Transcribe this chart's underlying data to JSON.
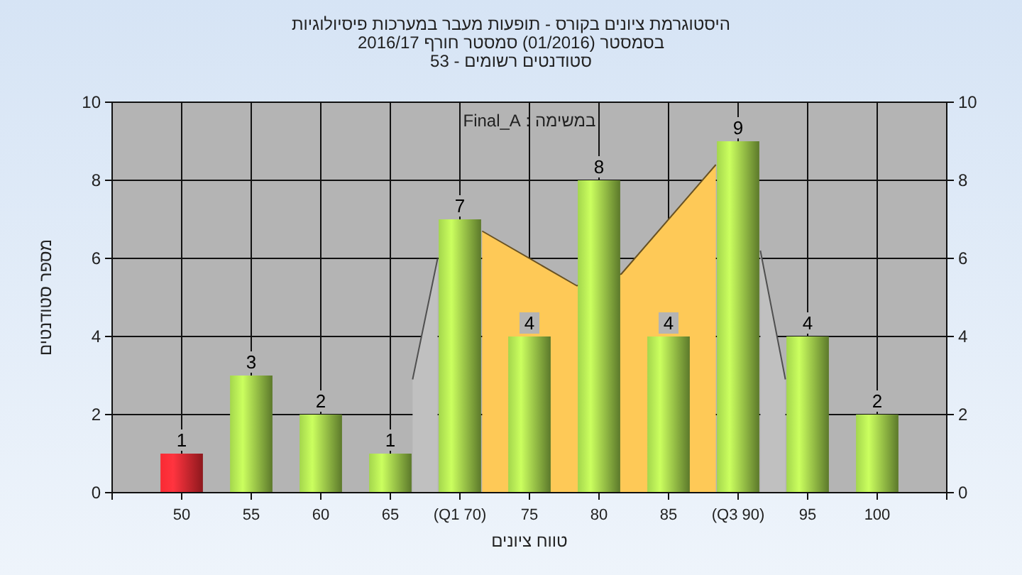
{
  "chart_data": {
    "type": "bar",
    "title": "היסטוגרמת ציונים בקורס - תופעות מעבר במערכות פיסיולוגיות",
    "subtitle": "בסמסטר  (01/2016)  סמסטר חורף 2016/17\nסטודנטים רשומים - 53",
    "xlabel": "טווח ציונים",
    "ylabel": "מספר סטודנטים",
    "annotations": [
      "במשימה : Final_A"
    ],
    "x": [
      50,
      55,
      60,
      65,
      70,
      75,
      80,
      85,
      90,
      95,
      100
    ],
    "series": [
      {
        "type": "area",
        "color": "#c0c0c0",
        "x": [
          66.6,
          68.4,
          80,
          91.6,
          93.4
        ],
        "values": [
          2.9,
          6.0,
          null,
          6.2,
          2.9
        ]
      },
      {
        "type": "area",
        "color": "#fec957",
        "x": [
          71.6,
          78.4,
          81.6,
          88.4
        ],
        "values": [
          6.7,
          5.3,
          5.6,
          8.4
        ]
      },
      {
        "colors": [
          "#e0262e",
          "#93c045",
          "#93c045",
          "#93c045",
          "#93c045",
          "#93c045",
          "#93c045",
          "#93c045",
          "#93c045",
          "#93c045",
          "#93c045"
        ],
        "values": [
          1,
          3,
          2,
          1,
          7,
          4,
          8,
          4,
          9,
          4,
          2
        ],
        "value_labels": [
          "1",
          "3",
          "2",
          "1",
          "7",
          "4",
          "8",
          "4",
          "9",
          "4",
          "2"
        ]
      }
    ],
    "xlim": [
      45,
      105
    ],
    "xticks": [
      {
        "value": 45,
        "label": null
      },
      50,
      55,
      60,
      65,
      {
        "value": 70,
        "label": "(Q1 70)"
      },
      75,
      80,
      85,
      {
        "value": 90,
        "label": "(Q3 90)"
      },
      95,
      100,
      {
        "value": 105,
        "label": null
      }
    ],
    "ylim": [
      0,
      10
    ],
    "yticks": [
      0,
      2,
      4,
      6,
      8,
      10
    ],
    "y2lim": [
      0,
      10
    ],
    "y2ticks": [
      0,
      2,
      4,
      6,
      8,
      10
    ],
    "grid": true
  }
}
